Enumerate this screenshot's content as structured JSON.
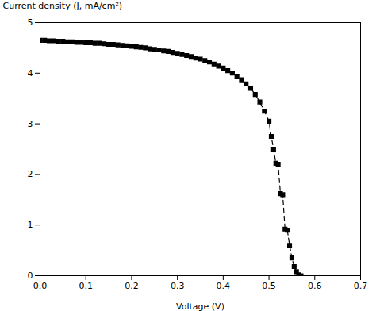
{
  "chart_data": {
    "type": "line",
    "xlabel": "Voltage (V)",
    "ylabel": "Current density (J, mA/cm²)",
    "x": [
      0.0,
      0.01,
      0.02,
      0.03,
      0.04,
      0.05,
      0.06,
      0.07,
      0.08,
      0.09,
      0.1,
      0.11,
      0.12,
      0.13,
      0.14,
      0.15,
      0.16,
      0.17,
      0.18,
      0.19,
      0.2,
      0.21,
      0.22,
      0.23,
      0.24,
      0.25,
      0.26,
      0.27,
      0.28,
      0.29,
      0.3,
      0.31,
      0.32,
      0.33,
      0.34,
      0.35,
      0.36,
      0.37,
      0.38,
      0.39,
      0.4,
      0.41,
      0.42,
      0.43,
      0.44,
      0.45,
      0.46,
      0.47,
      0.48,
      0.49,
      0.5,
      0.505,
      0.51,
      0.515,
      0.52,
      0.525,
      0.53,
      0.535,
      0.54,
      0.545,
      0.55,
      0.555,
      0.56,
      0.565,
      0.57
    ],
    "values": [
      4.65,
      4.65,
      4.64,
      4.64,
      4.63,
      4.63,
      4.62,
      4.62,
      4.61,
      4.61,
      4.6,
      4.6,
      4.59,
      4.59,
      4.58,
      4.57,
      4.57,
      4.56,
      4.55,
      4.54,
      4.53,
      4.52,
      4.51,
      4.5,
      4.48,
      4.47,
      4.46,
      4.44,
      4.43,
      4.41,
      4.39,
      4.37,
      4.35,
      4.33,
      4.3,
      4.28,
      4.25,
      4.22,
      4.18,
      4.14,
      4.1,
      4.05,
      4.0,
      3.94,
      3.87,
      3.79,
      3.7,
      3.58,
      3.43,
      3.25,
      3.05,
      2.75,
      2.5,
      2.22,
      2.2,
      1.62,
      1.6,
      0.92,
      0.9,
      0.6,
      0.35,
      0.18,
      0.08,
      0.02,
      0.0
    ],
    "color": "black",
    "marker": "square",
    "line_style": "dashed",
    "xlim": [
      0.0,
      0.7
    ],
    "ylim": [
      0.0,
      5.0
    ],
    "xticks": [
      {
        "value": 0,
        "label": "0.0"
      },
      0.1,
      0.2,
      0.3,
      0.4,
      0.5,
      0.6,
      0.7
    ],
    "yticks": [
      0,
      1,
      2,
      3,
      4,
      5
    ]
  }
}
